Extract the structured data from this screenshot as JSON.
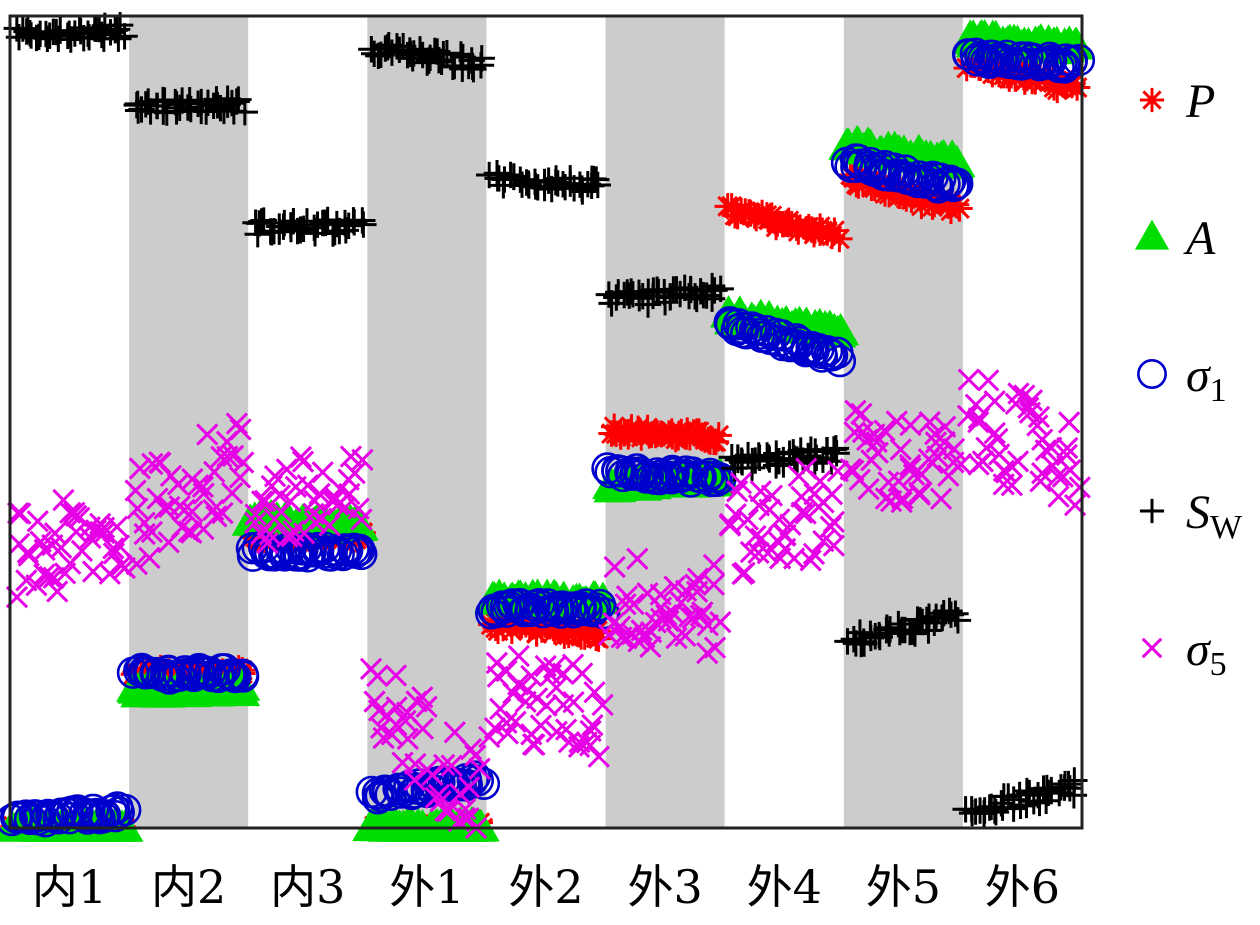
{
  "chart_data": {
    "type": "scatter",
    "categories": [
      "内1",
      "内2",
      "内3",
      "外1",
      "外2",
      "外3",
      "外4",
      "外5",
      "外6"
    ],
    "ylim": [
      0,
      1
    ],
    "grid": false,
    "legend_placement": "right",
    "shaded_bands": [
      "内2",
      "外1",
      "外3",
      "外5"
    ],
    "series": [
      {
        "key": "P",
        "label": "P",
        "sub": "",
        "marker": "asterisk",
        "color": "#ff0000",
        "groups": [
          [
            0.0,
            0.0
          ],
          [
            0.19,
            0.19
          ],
          [
            0.36,
            0.36
          ],
          [
            0.0,
            0.0
          ],
          [
            0.25,
            0.24
          ],
          [
            0.49,
            0.48
          ],
          [
            0.76,
            0.73
          ],
          [
            0.8,
            0.76
          ],
          [
            0.94,
            0.91
          ]
        ]
      },
      {
        "key": "A",
        "label": "A",
        "sub": "",
        "marker": "triangle",
        "color": "#00dd00",
        "groups": [
          [
            0.0,
            0.0
          ],
          [
            0.17,
            0.17
          ],
          [
            0.38,
            0.37
          ],
          [
            0.0,
            0.0
          ],
          [
            0.28,
            0.28
          ],
          [
            0.42,
            0.43
          ],
          [
            0.63,
            0.61
          ],
          [
            0.84,
            0.82
          ],
          [
            0.97,
            0.96
          ]
        ]
      },
      {
        "key": "sigma1",
        "label": "σ",
        "sub": "1",
        "marker": "circle",
        "color": "#0000cc",
        "groups": [
          [
            0.01,
            0.02
          ],
          [
            0.19,
            0.19
          ],
          [
            0.34,
            0.34
          ],
          [
            0.04,
            0.06
          ],
          [
            0.27,
            0.27
          ],
          [
            0.44,
            0.43
          ],
          [
            0.62,
            0.58
          ],
          [
            0.82,
            0.79
          ],
          [
            0.95,
            0.94
          ]
        ]
      },
      {
        "key": "SW",
        "label": "S",
        "sub": "W",
        "marker": "plus",
        "color": "#000000",
        "groups": [
          [
            0.98,
            0.98
          ],
          [
            0.89,
            0.89
          ],
          [
            0.74,
            0.74
          ],
          [
            0.96,
            0.94
          ],
          [
            0.8,
            0.79
          ],
          [
            0.65,
            0.66
          ],
          [
            0.45,
            0.46
          ],
          [
            0.23,
            0.26
          ],
          [
            0.02,
            0.05
          ]
        ]
      },
      {
        "key": "sigma5",
        "label": "σ",
        "sub": "5",
        "marker": "x",
        "color": "#e600e6",
        "groups": [
          [
            0.33,
            0.36
          ],
          [
            0.38,
            0.45
          ],
          [
            0.4,
            0.4
          ],
          [
            0.16,
            0.04
          ],
          [
            0.16,
            0.14
          ],
          [
            0.28,
            0.27
          ],
          [
            0.36,
            0.4
          ],
          [
            0.46,
            0.44
          ],
          [
            0.5,
            0.45
          ]
        ]
      }
    ]
  }
}
